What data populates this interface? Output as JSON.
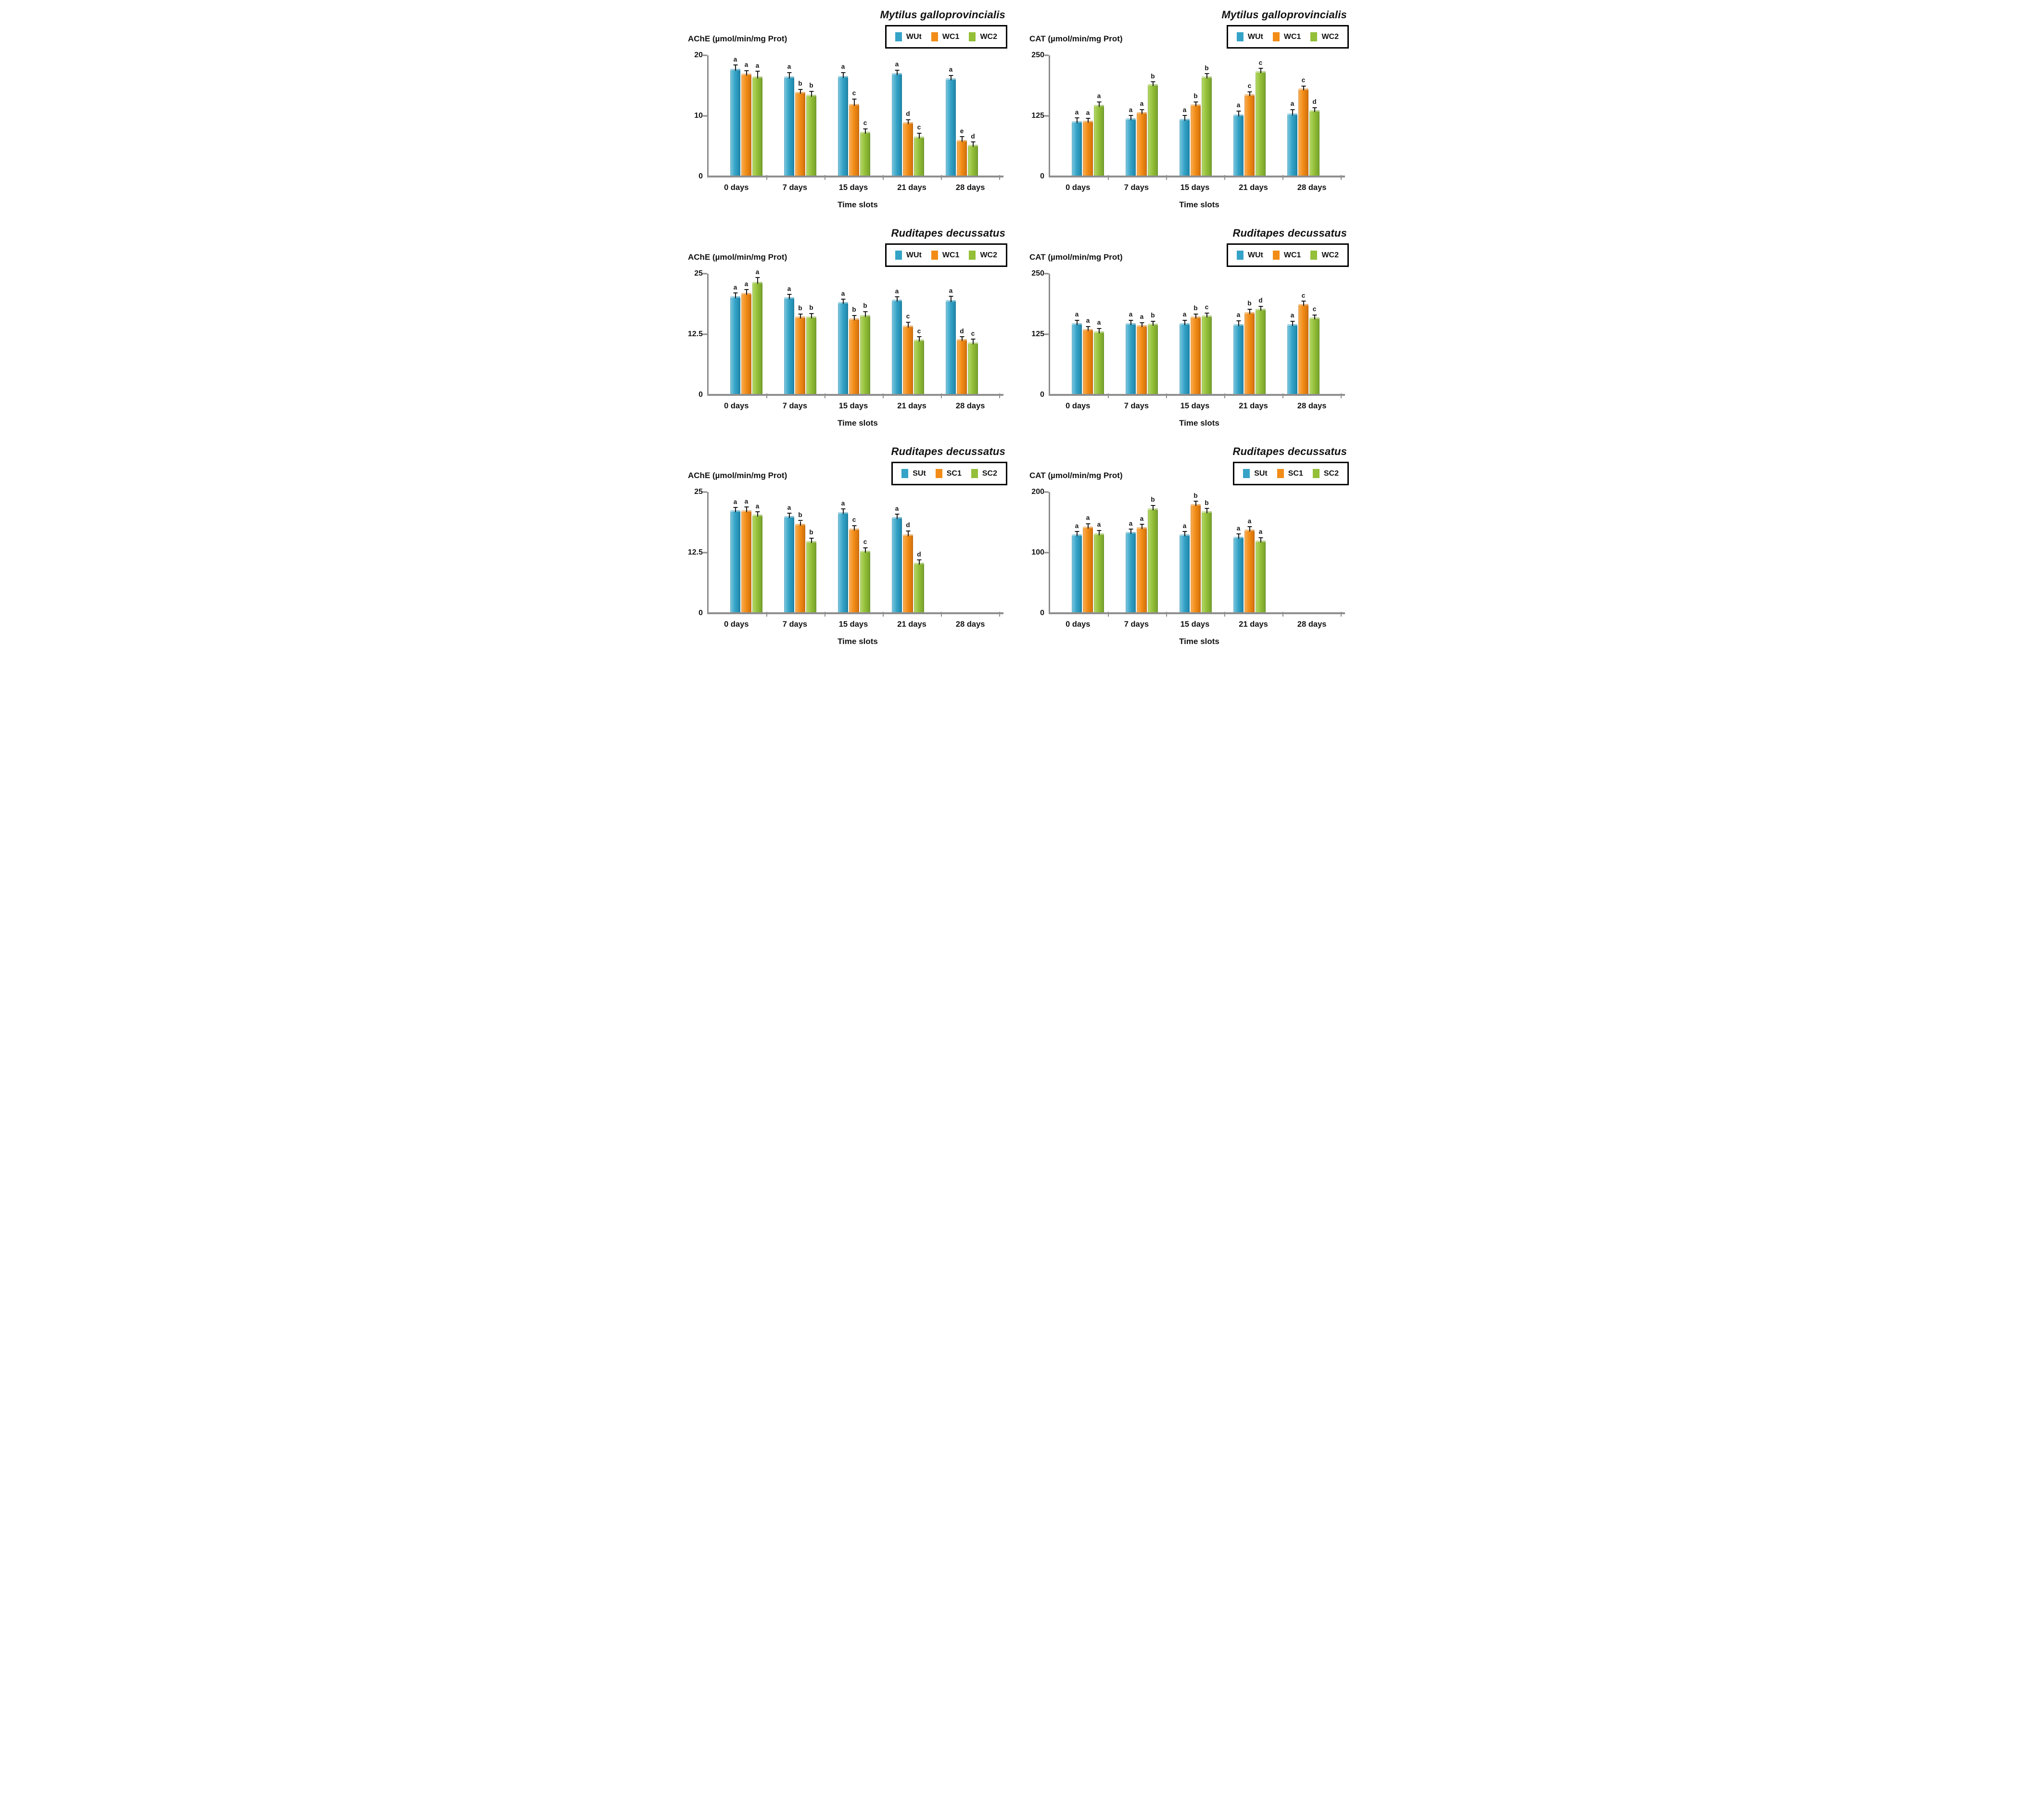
{
  "figure_caption": "",
  "colors": {
    "blue": {
      "light": "#7ec9e0",
      "main": "#35a3c7",
      "dark": "#1d85a8"
    },
    "orange": {
      "light": "#f9b057",
      "main": "#f28c17",
      "dark": "#d06f0a"
    },
    "green": {
      "light": "#b5d96a",
      "main": "#94bf38",
      "dark": "#74a02a"
    },
    "axis": "#8c8c8c",
    "text": "#111111"
  },
  "chart_data": [
    {
      "id": "mytilus-ache",
      "type": "bar",
      "title": "Mytilus galloprovincialis",
      "ylabel": "AChE (µmol/min/mg Prot)",
      "xlabel": "Time slots",
      "categories": [
        "0 days",
        "7 days",
        "15 days",
        "21 days",
        "28 days"
      ],
      "yticks": [
        0,
        10,
        20
      ],
      "ylim": [
        0,
        20
      ],
      "legend_position": "top-right",
      "grid": false,
      "series": [
        {
          "name": "WUt",
          "color": "blue",
          "values": [
            17.8,
            16.5,
            16.6,
            17.1,
            16.2
          ],
          "errors": [
            0.5,
            0.6,
            0.5,
            0.4,
            0.4
          ],
          "letters": [
            "a",
            "a",
            "a",
            "a",
            "a"
          ]
        },
        {
          "name": "WC1",
          "color": "orange",
          "values": [
            17.0,
            14.0,
            12.0,
            9.0,
            6.0
          ],
          "errors": [
            0.4,
            0.3,
            0.7,
            0.3,
            0.5
          ],
          "letters": [
            "a",
            "b",
            "c",
            "d",
            "e"
          ]
        },
        {
          "name": "WC2",
          "color": "green",
          "values": [
            16.5,
            13.5,
            7.4,
            6.6,
            5.2
          ],
          "errors": [
            0.8,
            0.5,
            0.4,
            0.5,
            0.4
          ],
          "letters": [
            "a",
            "b",
            "c",
            "c",
            "d"
          ]
        }
      ]
    },
    {
      "id": "mytilus-cat",
      "type": "bar",
      "title": "Mytilus galloprovincialis",
      "ylabel": "CAT (µmol/min/mg Prot)",
      "xlabel": "Time slots",
      "categories": [
        "0 days",
        "7 days",
        "15 days",
        "21 days",
        "28 days"
      ],
      "yticks": [
        0,
        125,
        250
      ],
      "ylim": [
        0,
        250
      ],
      "legend_position": "top-right",
      "grid": false,
      "series": [
        {
          "name": "WUt",
          "color": "blue",
          "values": [
            114,
            120,
            119,
            128,
            130
          ],
          "errors": [
            6,
            5,
            6,
            6,
            7
          ],
          "letters": [
            "a",
            "a",
            "a",
            "a",
            "a"
          ]
        },
        {
          "name": "WC1",
          "color": "orange",
          "values": [
            115,
            133,
            149,
            170,
            182
          ],
          "errors": [
            4,
            4,
            4,
            4,
            4
          ],
          "letters": [
            "a",
            "a",
            "b",
            "c",
            "c"
          ]
        },
        {
          "name": "WC2",
          "color": "green",
          "values": [
            148,
            190,
            206,
            217,
            137
          ],
          "errors": [
            5,
            4,
            5,
            5,
            4
          ],
          "letters": [
            "a",
            "b",
            "b",
            "c",
            "d"
          ]
        }
      ]
    },
    {
      "id": "ruditapes-winter-ache",
      "type": "bar",
      "title": "Ruditapes decussatus",
      "ylabel": "AChE (µmol/min/mg Prot)",
      "xlabel": "Time slots",
      "categories": [
        "0 days",
        "7 days",
        "15 days",
        "21 days",
        "28 days"
      ],
      "yticks": [
        0,
        12.5,
        25
      ],
      "ylim": [
        0,
        25
      ],
      "legend_position": "top-right",
      "grid": false,
      "series": [
        {
          "name": "WUt",
          "color": "blue",
          "values": [
            20.3,
            20.1,
            19.1,
            19.6,
            19.5
          ],
          "errors": [
            0.6,
            0.5,
            0.5,
            0.5,
            0.7
          ],
          "letters": [
            "a",
            "a",
            "a",
            "a",
            "a"
          ]
        },
        {
          "name": "WC1",
          "color": "orange",
          "values": [
            21.0,
            16.2,
            15.8,
            14.3,
            11.5
          ],
          "errors": [
            0.6,
            0.4,
            0.5,
            0.6,
            0.4
          ],
          "letters": [
            "a",
            "b",
            "b",
            "c",
            "d"
          ]
        },
        {
          "name": "WC2",
          "color": "green",
          "values": [
            23.3,
            16.2,
            16.5,
            11.4,
            10.8
          ],
          "errors": [
            0.8,
            0.5,
            0.6,
            0.5,
            0.6
          ],
          "letters": [
            "a",
            "b",
            "b",
            "c",
            "c"
          ]
        }
      ]
    },
    {
      "id": "ruditapes-winter-cat",
      "type": "bar",
      "title": "Ruditapes decussatus",
      "ylabel": "CAT (µmol/min/mg Prot)",
      "xlabel": "Time slots",
      "categories": [
        "0 days",
        "7 days",
        "15 days",
        "21 days",
        "28 days"
      ],
      "yticks": [
        0,
        125,
        250
      ],
      "ylim": [
        0,
        250
      ],
      "legend_position": "top-right",
      "grid": false,
      "series": [
        {
          "name": "WUt",
          "color": "blue",
          "values": [
            148,
            148,
            148,
            146,
            146
          ],
          "errors": [
            5,
            5,
            5,
            6,
            5
          ],
          "letters": [
            "a",
            "a",
            "a",
            "a",
            "a"
          ]
        },
        {
          "name": "WC1",
          "color": "orange",
          "values": [
            136,
            144,
            162,
            171,
            188
          ],
          "errors": [
            4,
            4,
            4,
            5,
            4
          ],
          "letters": [
            "a",
            "a",
            "b",
            "b",
            "c"
          ]
        },
        {
          "name": "WC2",
          "color": "green",
          "values": [
            131,
            147,
            164,
            178,
            160
          ],
          "errors": [
            5,
            4,
            4,
            4,
            4
          ],
          "letters": [
            "a",
            "b",
            "c",
            "d",
            "c"
          ]
        }
      ]
    },
    {
      "id": "ruditapes-summer-ache",
      "type": "bar",
      "title": "Ruditapes decussatus",
      "ylabel": "AChE (µmol/min/mg Prot)",
      "xlabel": "Time slots",
      "categories": [
        "0 days",
        "7 days",
        "15 days",
        "21 days",
        "28 days"
      ],
      "yticks": [
        0,
        12.5,
        25
      ],
      "ylim": [
        0,
        25
      ],
      "legend_position": "top-right",
      "grid": false,
      "series": [
        {
          "name": "SUt",
          "color": "blue",
          "values": [
            21.2,
            20.0,
            20.8,
            19.8,
            null
          ],
          "errors": [
            0.5,
            0.5,
            0.6,
            0.5,
            null
          ],
          "letters": [
            "a",
            "a",
            "a",
            "a",
            ""
          ]
        },
        {
          "name": "SC1",
          "color": "orange",
          "values": [
            21.2,
            18.5,
            17.5,
            16.3,
            null
          ],
          "errors": [
            0.6,
            0.5,
            0.5,
            0.6,
            null
          ],
          "letters": [
            "a",
            "b",
            "c",
            "d",
            ""
          ]
        },
        {
          "name": "SC2",
          "color": "green",
          "values": [
            20.3,
            14.9,
            12.9,
            10.4,
            null
          ],
          "errors": [
            0.5,
            0.5,
            0.5,
            0.5,
            null
          ],
          "letters": [
            "a",
            "b",
            "c",
            "d",
            ""
          ]
        }
      ]
    },
    {
      "id": "ruditapes-summer-cat",
      "type": "bar",
      "title": "Ruditapes decussatus",
      "ylabel": "CAT (µmol/min/mg Prot)",
      "xlabel": "Time slots",
      "categories": [
        "0 days",
        "7 days",
        "15 days",
        "21 days",
        "28 days"
      ],
      "yticks": [
        0,
        100,
        200
      ],
      "ylim": [
        0,
        200
      ],
      "legend_position": "top-right",
      "grid": false,
      "series": [
        {
          "name": "SUt",
          "color": "blue",
          "values": [
            130,
            134,
            130,
            126,
            null
          ],
          "errors": [
            4,
            4,
            4,
            4,
            null
          ],
          "letters": [
            "a",
            "a",
            "a",
            "a",
            ""
          ]
        },
        {
          "name": "SC1",
          "color": "orange",
          "values": [
            143,
            142,
            180,
            138,
            null
          ],
          "errors": [
            4,
            4,
            4,
            4,
            null
          ],
          "letters": [
            "a",
            "a",
            "b",
            "a",
            ""
          ]
        },
        {
          "name": "SC2",
          "color": "green",
          "values": [
            132,
            173,
            168,
            120,
            null
          ],
          "errors": [
            4,
            4,
            4,
            4,
            null
          ],
          "letters": [
            "a",
            "b",
            "b",
            "a",
            ""
          ]
        }
      ]
    }
  ]
}
